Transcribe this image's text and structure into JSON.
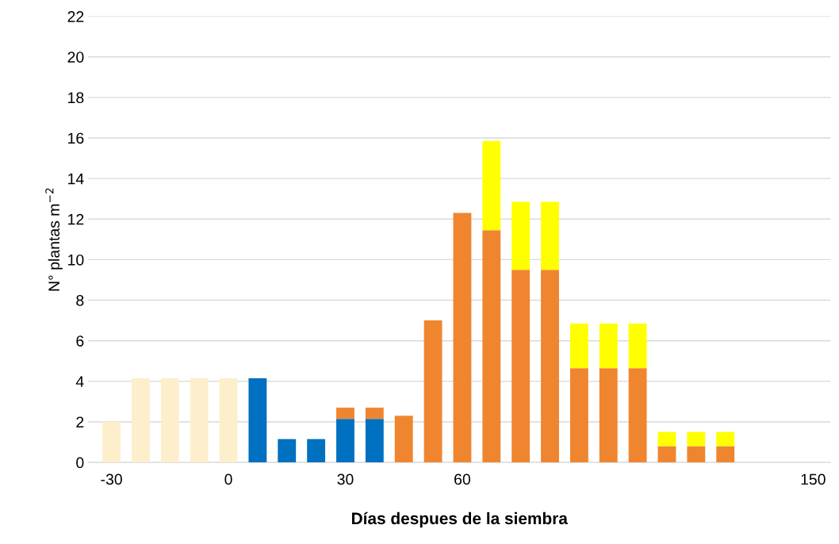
{
  "chart_data": {
    "type": "bar",
    "stacked": true,
    "xlabel": "Días despues de la siembra",
    "ylabel": "N° plantas m$^{−2}$",
    "categories": [
      "-30",
      null,
      null,
      null,
      "0",
      null,
      null,
      null,
      "30",
      null,
      null,
      null,
      "60",
      null,
      null,
      null,
      null,
      null,
      null,
      null,
      null,
      null,
      null,
      null,
      "150"
    ],
    "series": [
      {
        "color": "#fdefcc",
        "values": [
          2,
          4.15,
          4.15,
          4.15,
          4.15,
          null,
          null,
          null,
          null,
          null,
          null,
          null,
          null,
          null,
          null,
          null,
          null,
          null,
          null,
          null,
          null,
          null,
          null,
          null,
          null
        ]
      },
      {
        "color": "#0070c0",
        "values": [
          null,
          null,
          null,
          null,
          null,
          4.15,
          1.15,
          1.15,
          2.15,
          2.15,
          null,
          null,
          null,
          null,
          null,
          null,
          null,
          null,
          null,
          null,
          null,
          null,
          null,
          null,
          null
        ]
      },
      {
        "color": "#f0852f",
        "values": [
          null,
          null,
          null,
          null,
          null,
          null,
          null,
          null,
          0.55,
          0.55,
          2.3,
          7.0,
          12.3,
          11.45,
          9.5,
          9.5,
          4.65,
          4.65,
          4.65,
          0.8,
          0.8,
          0.8,
          null,
          null,
          null
        ]
      },
      {
        "color": "#ffff00",
        "values": [
          null,
          null,
          null,
          null,
          null,
          null,
          null,
          null,
          null,
          null,
          null,
          null,
          null,
          4.4,
          3.35,
          3.35,
          2.2,
          2.2,
          2.2,
          0.7,
          0.7,
          0.7,
          null,
          null,
          null
        ]
      }
    ],
    "ylim": [
      0,
      22
    ],
    "yticks": [
      0,
      2,
      4,
      6,
      8,
      10,
      12,
      14,
      16,
      18,
      20,
      22
    ],
    "grid": "y",
    "legend": false
  }
}
